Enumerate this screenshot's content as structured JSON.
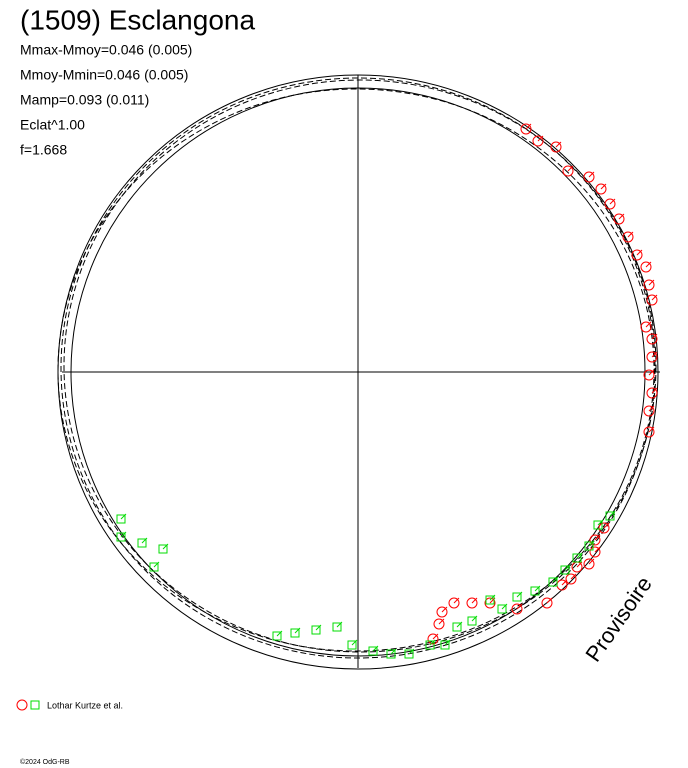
{
  "chart_data": {
    "type": "scatter",
    "title": "(1509) Esclangona",
    "stats": [
      "Mmax-Mmoy=0.046 (0.005)",
      "Mmoy-Mmin=0.046 (0.005)",
      "Mamp=0.093 (0.011)",
      "Eclat^1.00",
      "f=1.668"
    ],
    "watermark": "Provisoire",
    "legend": "Lothar Kurtze et al.",
    "copyright": "©2024 OdG-RB",
    "xlim": [
      -1,
      1
    ],
    "ylim": [
      -1,
      1
    ],
    "series": [
      {
        "marker": "circle",
        "color": "#ff0000",
        "x": [
          0.56,
          0.6,
          0.66,
          0.7,
          0.77,
          0.81,
          0.84,
          0.87,
          0.9,
          0.93,
          0.96,
          0.97,
          0.98,
          0.96,
          0.98,
          0.98,
          0.97,
          0.98,
          0.97,
          0.97,
          0.82,
          0.79,
          0.79,
          0.77,
          0.73,
          0.71,
          0.68,
          0.63,
          0.53,
          0.44,
          0.38,
          0.32,
          0.28,
          0.27,
          0.25
        ],
        "values": [
          0.81,
          0.77,
          0.75,
          0.67,
          0.65,
          0.61,
          0.56,
          0.51,
          0.45,
          0.39,
          0.35,
          0.29,
          0.24,
          0.15,
          0.11,
          0.05,
          -0.01,
          -0.07,
          -0.13,
          -0.2,
          -0.52,
          -0.56,
          -0.6,
          -0.64,
          -0.65,
          -0.69,
          -0.71,
          -0.77,
          -0.79,
          -0.77,
          -0.77,
          -0.77,
          -0.8,
          -0.84,
          -0.89
        ]
      },
      {
        "marker": "square",
        "color": "#00dd00",
        "x": [
          -0.79,
          -0.79,
          -0.72,
          -0.65,
          -0.68,
          -0.27,
          -0.21,
          -0.14,
          -0.07,
          -0.02,
          0.05,
          0.11,
          0.17,
          0.24,
          0.29,
          0.33,
          0.38,
          0.44,
          0.48,
          0.53,
          0.59,
          0.65,
          0.69,
          0.73,
          0.77,
          0.8,
          0.84
        ],
        "values": [
          -0.49,
          -0.55,
          -0.57,
          -0.59,
          -0.65,
          -0.88,
          -0.87,
          -0.86,
          -0.85,
          -0.91,
          -0.93,
          -0.94,
          -0.94,
          -0.91,
          -0.91,
          -0.85,
          -0.83,
          -0.76,
          -0.79,
          -0.75,
          -0.73,
          -0.7,
          -0.66,
          -0.62,
          -0.58,
          -0.51,
          -0.48
        ]
      }
    ]
  }
}
